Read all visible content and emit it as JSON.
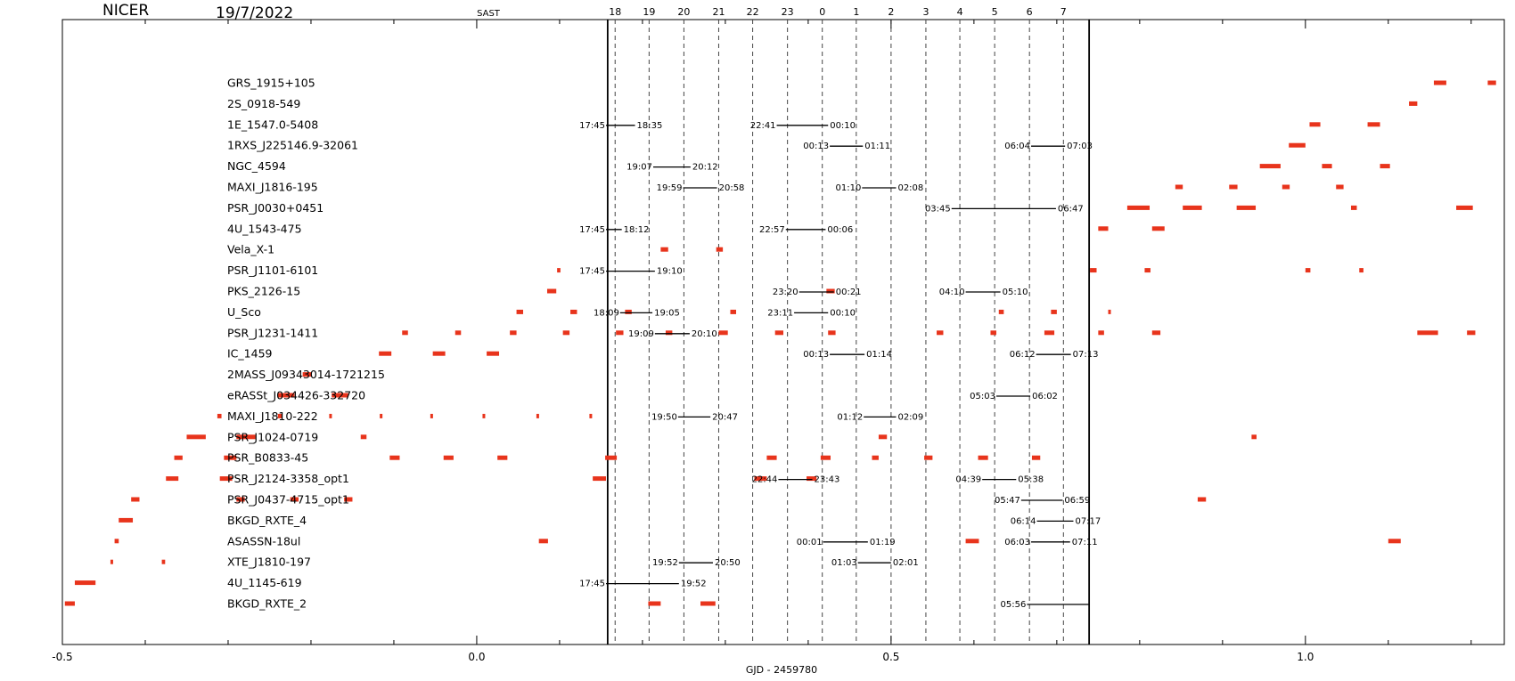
{
  "header": {
    "instrument": "NICER",
    "date": "19/7/2022",
    "timezone": "SAST"
  },
  "chart_data": {
    "type": "timeline",
    "xlabel": "GJD -  2459780",
    "xlim": [
      -0.5,
      1.24
    ],
    "xticks": [
      {
        "value": -0.5,
        "label": "-0.5"
      },
      {
        "value": 0.0,
        "label": "0.0"
      },
      {
        "value": 0.5,
        "label": "0.5"
      },
      {
        "value": 1.0,
        "label": "1.0"
      }
    ],
    "night_window": [
      0.158,
      0.739
    ],
    "hour_lines": [
      {
        "x": 0.167,
        "label": "18"
      },
      {
        "x": 0.208,
        "label": "19"
      },
      {
        "x": 0.25,
        "label": "20"
      },
      {
        "x": 0.292,
        "label": "21"
      },
      {
        "x": 0.333,
        "label": "22"
      },
      {
        "x": 0.375,
        "label": "23"
      },
      {
        "x": 0.417,
        "label": "0"
      },
      {
        "x": 0.458,
        "label": "1"
      },
      {
        "x": 0.5,
        "label": "2"
      },
      {
        "x": 0.542,
        "label": "3"
      },
      {
        "x": 0.583,
        "label": "4"
      },
      {
        "x": 0.625,
        "label": "5"
      },
      {
        "x": 0.667,
        "label": "6"
      },
      {
        "x": 0.708,
        "label": "7"
      }
    ],
    "sources": [
      {
        "name": "GRS_1915+105",
        "windows": [],
        "visibility": [
          [
            1.155,
            1.17
          ],
          [
            1.22,
            1.23
          ]
        ]
      },
      {
        "name": "2S_0918-549",
        "windows": [],
        "visibility": [
          [
            1.125,
            1.135
          ]
        ]
      },
      {
        "name": "1E_1547.0-5408",
        "windows": [
          {
            "start": "17:45",
            "end": "18:35",
            "x0": 0.156,
            "x1": 0.191
          },
          {
            "start": "22:41",
            "end": "00:10",
            "x0": 0.362,
            "x1": 0.424
          }
        ],
        "visibility": [
          [
            1.005,
            1.018
          ],
          [
            1.075,
            1.09
          ]
        ]
      },
      {
        "name": "1RXS_J225146.9-32061",
        "windows": [
          {
            "start": "00:13",
            "end": "01:11",
            "x0": 0.426,
            "x1": 0.466
          },
          {
            "start": "06:04",
            "end": "07:03",
            "x0": 0.669,
            "x1": 0.71
          }
        ],
        "visibility": [
          [
            0.98,
            1.0
          ]
        ]
      },
      {
        "name": "NGC_4594",
        "windows": [
          {
            "start": "19:07",
            "end": "20:12",
            "x0": 0.213,
            "x1": 0.258
          }
        ],
        "visibility": [
          [
            0.945,
            0.97
          ],
          [
            1.02,
            1.032
          ],
          [
            1.09,
            1.102
          ]
        ]
      },
      {
        "name": "MAXI_J1816-195",
        "windows": [
          {
            "start": "19:59",
            "end": "20:58",
            "x0": 0.249,
            "x1": 0.29
          },
          {
            "start": "01:10",
            "end": "02:08",
            "x0": 0.465,
            "x1": 0.506
          }
        ],
        "visibility": [
          [
            0.843,
            0.852
          ],
          [
            0.908,
            0.918
          ],
          [
            0.972,
            0.981
          ],
          [
            1.037,
            1.046
          ]
        ]
      },
      {
        "name": "PSR_J0030+0451",
        "windows": [
          {
            "start": "03:45",
            "end": "06:47",
            "x0": 0.573,
            "x1": 0.699
          }
        ],
        "visibility": [
          [
            0.785,
            0.812
          ],
          [
            0.852,
            0.875
          ],
          [
            0.917,
            0.94
          ],
          [
            1.055,
            1.062
          ],
          [
            1.182,
            1.202
          ]
        ]
      },
      {
        "name": "4U_1543-475",
        "windows": [
          {
            "start": "17:45",
            "end": "18:12",
            "x0": 0.156,
            "x1": 0.175
          },
          {
            "start": "22:57",
            "end": "00:06",
            "x0": 0.373,
            "x1": 0.421
          }
        ],
        "visibility": [
          [
            0.75,
            0.762
          ],
          [
            0.815,
            0.83
          ]
        ]
      },
      {
        "name": "Vela_X-1",
        "windows": [],
        "visibility": [
          [
            0.222,
            0.231
          ],
          [
            0.289,
            0.297
          ]
        ]
      },
      {
        "name": "PSR_J1101-6101",
        "windows": [
          {
            "start": "17:45",
            "end": "19:10",
            "x0": 0.156,
            "x1": 0.215
          }
        ],
        "visibility": [
          [
            0.097,
            0.101
          ],
          [
            0.74,
            0.748
          ],
          [
            0.806,
            0.813
          ],
          [
            1.0,
            1.006
          ],
          [
            1.065,
            1.07
          ]
        ]
      },
      {
        "name": "PKS_2126-15",
        "windows": [
          {
            "start": "23:20",
            "end": "00:21",
            "x0": 0.389,
            "x1": 0.431
          },
          {
            "start": "04:10",
            "end": "05:10",
            "x0": 0.59,
            "x1": 0.632
          }
        ],
        "visibility": [
          [
            0.085,
            0.096
          ],
          [
            0.422,
            0.432
          ]
        ]
      },
      {
        "name": "U_Sco",
        "windows": [
          {
            "start": "18:09",
            "end": "19:05",
            "x0": 0.173,
            "x1": 0.212
          },
          {
            "start": "23:11",
            "end": "00:10",
            "x0": 0.383,
            "x1": 0.424
          }
        ],
        "visibility": [
          [
            0.048,
            0.056
          ],
          [
            0.113,
            0.121
          ],
          [
            0.179,
            0.187
          ],
          [
            0.306,
            0.313
          ],
          [
            0.63,
            0.636
          ],
          [
            0.693,
            0.7
          ],
          [
            0.762,
            0.765
          ]
        ]
      },
      {
        "name": "PSR_J1231-1411",
        "windows": [
          {
            "start": "19:09",
            "end": "20:10",
            "x0": 0.215,
            "x1": 0.257
          }
        ],
        "visibility": [
          [
            -0.09,
            -0.083
          ],
          [
            -0.026,
            -0.019
          ],
          [
            0.04,
            0.048
          ],
          [
            0.104,
            0.112
          ],
          [
            0.168,
            0.177
          ],
          [
            0.228,
            0.236
          ],
          [
            0.292,
            0.303
          ],
          [
            0.36,
            0.37
          ],
          [
            0.424,
            0.433
          ],
          [
            0.555,
            0.563
          ],
          [
            0.62,
            0.627
          ],
          [
            0.685,
            0.697
          ],
          [
            0.75,
            0.757
          ],
          [
            0.815,
            0.825
          ],
          [
            1.135,
            1.16
          ],
          [
            1.195,
            1.205
          ]
        ]
      },
      {
        "name": "IC_1459",
        "windows": [
          {
            "start": "00:13",
            "end": "01:14",
            "x0": 0.426,
            "x1": 0.468
          },
          {
            "start": "06:12",
            "end": "07:13",
            "x0": 0.675,
            "x1": 0.717
          }
        ],
        "visibility": [
          [
            -0.118,
            -0.103
          ],
          [
            -0.053,
            -0.038
          ],
          [
            0.012,
            0.027
          ]
        ]
      },
      {
        "name": "2MASS_J09343014-1721215",
        "windows": [],
        "visibility": [
          [
            -0.21,
            -0.2
          ]
        ]
      },
      {
        "name": "eRASSt_J034426-332720",
        "windows": [
          {
            "start": "05:03",
            "end": "06:02",
            "x0": 0.627,
            "x1": 0.668
          }
        ],
        "visibility": [
          [
            -0.24,
            -0.22
          ],
          [
            -0.175,
            -0.155
          ]
        ]
      },
      {
        "name": "MAXI_J1810-222",
        "windows": [
          {
            "start": "19:50",
            "end": "20:47",
            "x0": 0.243,
            "x1": 0.282
          },
          {
            "start": "01:12",
            "end": "02:09",
            "x0": 0.467,
            "x1": 0.506
          }
        ],
        "visibility": [
          [
            -0.313,
            -0.308
          ],
          [
            -0.24,
            -0.235
          ],
          [
            -0.178,
            -0.175
          ],
          [
            -0.117,
            -0.114
          ],
          [
            -0.056,
            -0.053
          ],
          [
            0.007,
            0.01
          ],
          [
            0.072,
            0.075
          ],
          [
            0.136,
            0.139
          ]
        ]
      },
      {
        "name": "PSR_J1024-0719",
        "windows": [],
        "visibility": [
          [
            -0.35,
            -0.327
          ],
          [
            -0.29,
            -0.267
          ],
          [
            -0.14,
            -0.133
          ],
          [
            0.485,
            0.495
          ],
          [
            0.935,
            0.941
          ]
        ]
      },
      {
        "name": "PSR_B0833-45",
        "windows": [],
        "visibility": [
          [
            -0.365,
            -0.355
          ],
          [
            -0.305,
            -0.29
          ],
          [
            -0.105,
            -0.093
          ],
          [
            -0.04,
            -0.028
          ],
          [
            0.025,
            0.037
          ],
          [
            0.155,
            0.169
          ],
          [
            0.35,
            0.362
          ],
          [
            0.415,
            0.427
          ],
          [
            0.477,
            0.485
          ],
          [
            0.54,
            0.55
          ],
          [
            0.605,
            0.617
          ],
          [
            0.67,
            0.68
          ]
        ]
      },
      {
        "name": "PSR_J2124-3358_opt1",
        "windows": [
          {
            "start": "22:44",
            "end": "23:43",
            "x0": 0.364,
            "x1": 0.405
          },
          {
            "start": "04:39",
            "end": "05:38",
            "x0": 0.61,
            "x1": 0.651
          }
        ],
        "visibility": [
          [
            -0.375,
            -0.36
          ],
          [
            -0.31,
            -0.295
          ],
          [
            0.14,
            0.156
          ],
          [
            0.335,
            0.35
          ],
          [
            0.398,
            0.41
          ]
        ]
      },
      {
        "name": "PSR_J0437-4715_opt1",
        "windows": [
          {
            "start": "05:47",
            "end": "06:59",
            "x0": 0.657,
            "x1": 0.707
          }
        ],
        "visibility": [
          [
            -0.417,
            -0.407
          ],
          [
            -0.29,
            -0.28
          ],
          [
            -0.225,
            -0.215
          ],
          [
            -0.16,
            -0.15
          ],
          [
            0.87,
            0.88
          ]
        ]
      },
      {
        "name": "BKGD_RXTE_4",
        "windows": [
          {
            "start": "06:14",
            "end": "07:17",
            "x0": 0.676,
            "x1": 0.72
          }
        ],
        "visibility": [
          [
            -0.432,
            -0.415
          ]
        ]
      },
      {
        "name": "ASASSN-18ul",
        "windows": [
          {
            "start": "00:01",
            "end": "01:19",
            "x0": 0.418,
            "x1": 0.472
          },
          {
            "start": "06:03",
            "end": "07:11",
            "x0": 0.669,
            "x1": 0.716
          }
        ],
        "visibility": [
          [
            -0.437,
            -0.432
          ],
          [
            0.075,
            0.086
          ],
          [
            0.59,
            0.606
          ],
          [
            1.1,
            1.115
          ]
        ]
      },
      {
        "name": "XTE_J1810-197",
        "windows": [
          {
            "start": "19:52",
            "end": "20:50",
            "x0": 0.244,
            "x1": 0.285
          },
          {
            "start": "01:03",
            "end": "02:01",
            "x0": 0.46,
            "x1": 0.5
          }
        ],
        "visibility": [
          [
            -0.442,
            -0.44
          ],
          [
            -0.38,
            -0.376
          ]
        ]
      },
      {
        "name": "4U_1145-619",
        "windows": [
          {
            "start": "17:45",
            "end": "19:52",
            "x0": 0.156,
            "x1": 0.244
          }
        ],
        "visibility": [
          [
            -0.485,
            -0.46
          ]
        ]
      },
      {
        "name": "BKGD_RXTE_2",
        "windows": [
          {
            "start": "05:56",
            "end": "",
            "x0": 0.664,
            "x1": 0.739
          }
        ],
        "visibility": [
          [
            -0.497,
            -0.485
          ],
          [
            0.207,
            0.222
          ],
          [
            0.27,
            0.288
          ]
        ]
      }
    ],
    "colors": {
      "visibility": "#e8341c",
      "window": "#000000",
      "grid": "#444444"
    }
  }
}
